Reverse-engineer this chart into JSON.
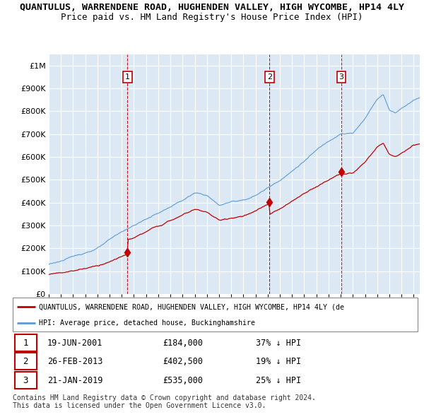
{
  "title": "QUANTULUS, WARRENDENE ROAD, HUGHENDEN VALLEY, HIGH WYCOMBE, HP14 4LY",
  "subtitle": "Price paid vs. HM Land Registry's House Price Index (HPI)",
  "hpi_label": "HPI: Average price, detached house, Buckinghamshire",
  "price_label": "QUANTULUS, WARRENDENE ROAD, HUGHENDEN VALLEY, HIGH WYCOMBE, HP14 4LY (de",
  "sales": [
    {
      "num": 1,
      "date": "19-JUN-2001",
      "year": 2001.47,
      "price": 184000,
      "pct": "37% ↓ HPI"
    },
    {
      "num": 2,
      "date": "26-FEB-2013",
      "year": 2013.15,
      "price": 402500,
      "pct": "19% ↓ HPI"
    },
    {
      "num": 3,
      "date": "21-JAN-2019",
      "year": 2019.05,
      "price": 535000,
      "pct": "25% ↓ HPI"
    }
  ],
  "ylim": [
    0,
    1050000
  ],
  "xlim_start": 1995,
  "xlim_end": 2025.5,
  "hpi_color": "#5b9bd5",
  "price_color": "#c00000",
  "vline_color": "#c00000",
  "bg_color": "#ffffff",
  "chart_bg": "#dce9f5",
  "grid_color": "#aaaacc",
  "footer": "Contains HM Land Registry data © Crown copyright and database right 2024.\nThis data is licensed under the Open Government Licence v3.0.",
  "title_fontsize": 9.5,
  "subtitle_fontsize": 9
}
